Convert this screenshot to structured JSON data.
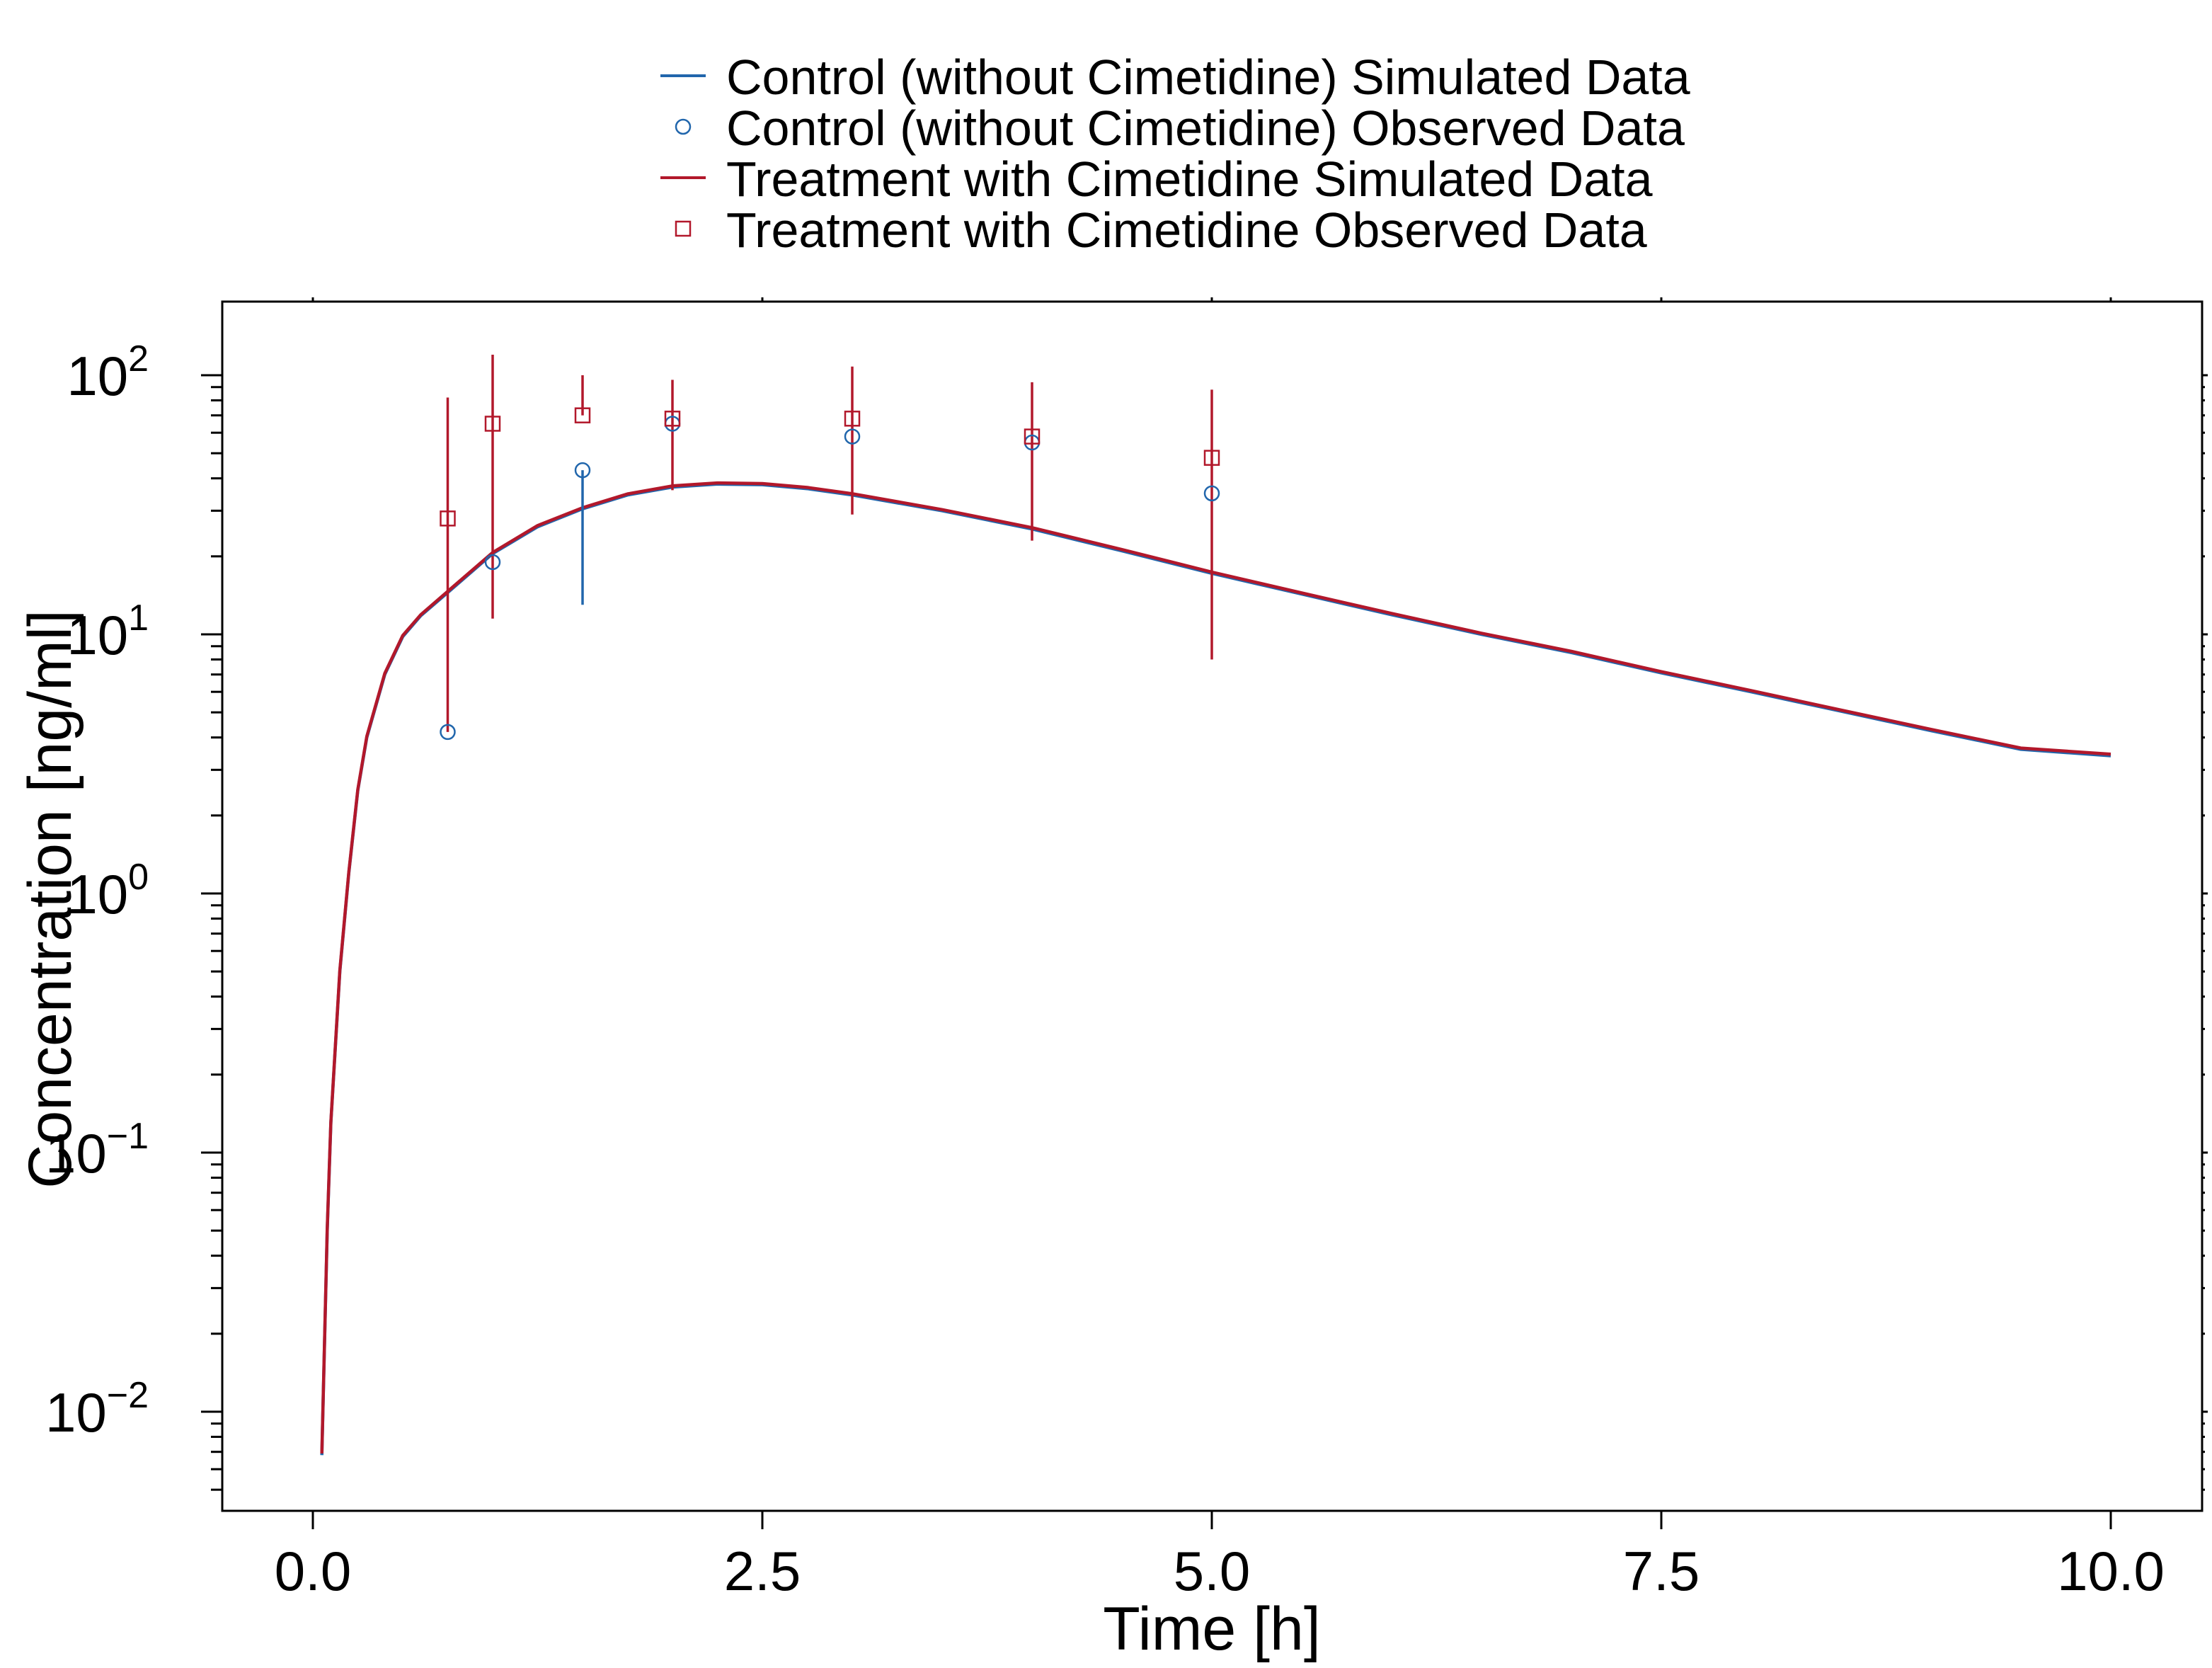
{
  "chart_data": {
    "type": "line",
    "title": "",
    "xlabel": "Time [h]",
    "ylabel": "Concentration [ng/ml]",
    "xlim": [
      -0.5,
      10.5
    ],
    "ylim": [
      0.004,
      200
    ],
    "yscale": "log",
    "grid": false,
    "legend_position": "top-center",
    "x_ticks": [
      {
        "value": 0,
        "label": "0.0"
      },
      {
        "value": 2.5,
        "label": "2.5"
      },
      {
        "value": 5,
        "label": "5.0"
      },
      {
        "value": 7.5,
        "label": "7.5"
      },
      {
        "value": 10,
        "label": "10.0"
      }
    ],
    "y_ticks": [
      {
        "value": 0.01,
        "base": "10",
        "exp": "−2"
      },
      {
        "value": 0.1,
        "base": "10",
        "exp": "−1"
      },
      {
        "value": 1,
        "base": "10",
        "exp": "0"
      },
      {
        "value": 10,
        "base": "10",
        "exp": "1"
      },
      {
        "value": 100,
        "base": "10",
        "exp": "2"
      }
    ],
    "series": [
      {
        "name": "Control (without Cimetidine) Simulated Data",
        "kind": "line",
        "color": "#2166ac",
        "x": [
          0.05,
          0.08,
          0.1,
          0.15,
          0.2,
          0.25,
          0.3,
          0.4,
          0.5,
          0.6,
          0.75,
          1.0,
          1.25,
          1.5,
          1.75,
          2.0,
          2.25,
          2.5,
          2.75,
          3.0,
          3.5,
          4.0,
          4.5,
          5.0,
          5.5,
          6.0,
          6.5,
          7.0,
          7.5,
          8.0,
          8.5,
          9.0,
          9.5,
          10.0
        ],
        "y": [
          0.0068,
          0.05,
          0.13,
          0.5,
          1.2,
          2.5,
          4.0,
          7.0,
          9.8,
          11.8,
          14.5,
          20.5,
          26.0,
          30.5,
          34.5,
          37.0,
          38.0,
          37.8,
          36.5,
          34.5,
          30.0,
          25.5,
          21.0,
          17.2,
          14.3,
          11.9,
          10.0,
          8.5,
          7.1,
          6.0,
          5.05,
          4.25,
          3.6,
          3.4
        ]
      },
      {
        "name": "Control (without Cimetidine) Observed Data",
        "kind": "points",
        "marker": "circle",
        "color": "#2166ac",
        "x": [
          0.75,
          1.0,
          1.5,
          2.0,
          3.0,
          4.0,
          5.0
        ],
        "y": [
          4.2,
          19,
          43,
          65,
          58,
          55,
          35
        ],
        "err_low": [
          4.2,
          19,
          13,
          65,
          58,
          55,
          35
        ],
        "err_high": [
          4.2,
          19,
          43,
          65,
          58,
          55,
          35
        ]
      },
      {
        "name": "Treatment with Cimetidine Simulated Data",
        "kind": "line",
        "color": "#b2182b",
        "x": [
          0.05,
          0.08,
          0.1,
          0.15,
          0.2,
          0.25,
          0.3,
          0.4,
          0.5,
          0.6,
          0.75,
          1.0,
          1.25,
          1.5,
          1.75,
          2.0,
          2.25,
          2.5,
          2.75,
          3.0,
          3.5,
          4.0,
          4.5,
          5.0,
          5.5,
          6.0,
          6.5,
          7.0,
          7.5,
          8.0,
          8.5,
          9.0,
          9.5,
          10.0
        ],
        "y": [
          0.0069,
          0.051,
          0.131,
          0.505,
          1.21,
          2.52,
          4.04,
          7.07,
          9.9,
          11.9,
          14.65,
          20.7,
          26.3,
          30.8,
          34.85,
          37.4,
          38.4,
          38.2,
          36.9,
          34.9,
          30.3,
          25.8,
          21.25,
          17.4,
          14.45,
          12.05,
          10.1,
          8.6,
          7.18,
          6.07,
          5.1,
          4.3,
          3.64,
          3.45
        ]
      },
      {
        "name": "Treatment with Cimetidine Observed Data",
        "kind": "points",
        "marker": "square",
        "color": "#b2182b",
        "x": [
          0.75,
          1.0,
          1.5,
          2.0,
          3.0,
          4.0,
          5.0
        ],
        "y": [
          28,
          65,
          70,
          68,
          68,
          58,
          48
        ],
        "err_low": [
          4.2,
          11.5,
          70,
          36,
          29,
          23,
          8
        ],
        "err_high": [
          82,
          120,
          100,
          96,
          108,
          94,
          88
        ]
      }
    ]
  }
}
